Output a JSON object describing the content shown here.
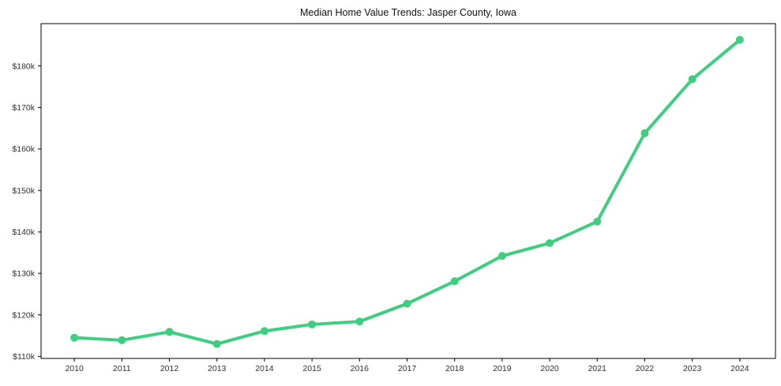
{
  "chart_data": {
    "type": "line",
    "title": "Median Home Value Trends: Jasper County, Iowa",
    "xlabel": "",
    "ylabel": "",
    "x": [
      2010,
      2011,
      2012,
      2013,
      2014,
      2015,
      2016,
      2017,
      2018,
      2019,
      2020,
      2021,
      2022,
      2023,
      2024
    ],
    "series": [
      {
        "name": "Median Home Value",
        "values": [
          114.5,
          113.9,
          115.9,
          113.0,
          116.1,
          117.7,
          118.4,
          122.7,
          128.1,
          134.2,
          137.3,
          142.5,
          163.8,
          176.8,
          186.3
        ]
      }
    ],
    "values_unit": "USD thousands",
    "xtick_labels": [
      "2010",
      "2011",
      "2012",
      "2013",
      "2014",
      "2015",
      "2016",
      "2017",
      "2018",
      "2019",
      "2020",
      "2021",
      "2022",
      "2023",
      "2024"
    ],
    "yticks": [
      110,
      120,
      130,
      140,
      150,
      160,
      170,
      180
    ],
    "ytick_labels": [
      "$110k",
      "$120k",
      "$130k",
      "$140k",
      "$150k",
      "$160k",
      "$170k",
      "$180k"
    ],
    "xlim": [
      2009.3,
      2024.75
    ],
    "ylim": [
      109.5,
      190.2
    ],
    "grid": false,
    "legend": false,
    "line_color": "#3ece80",
    "marker": "circle",
    "background_color": "#ffffff"
  }
}
